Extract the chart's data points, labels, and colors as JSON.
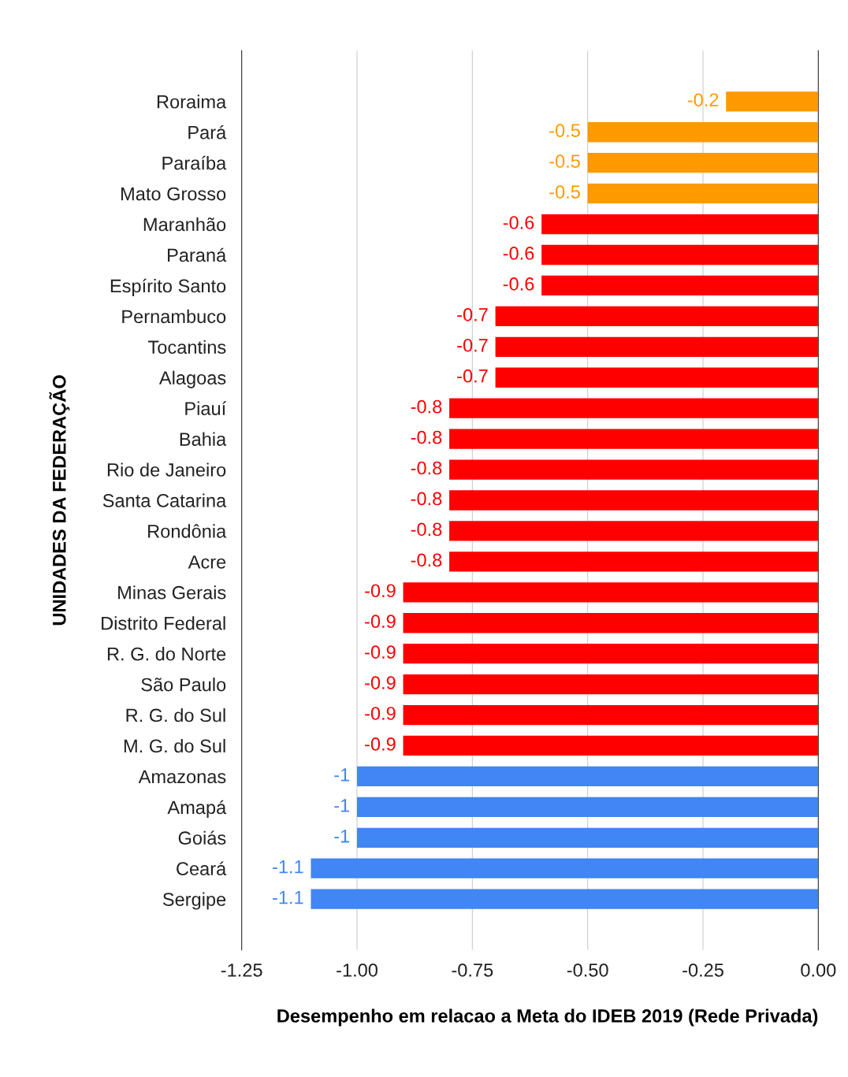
{
  "chart_data": {
    "type": "bar",
    "orientation": "horizontal",
    "xlabel": "Desempenho em relacao a Meta do IDEB 2019 (Rede Privada)",
    "ylabel": "UNIDADES DA FEDERAÇÃO",
    "categories": [
      "Roraima",
      "Pará",
      "Paraíba",
      "Mato Grosso",
      "Maranhão",
      "Paraná",
      "Espírito Santo",
      "Pernambuco",
      "Tocantins",
      "Alagoas",
      "Piauí",
      "Bahia",
      "Rio de Janeiro",
      "Santa Catarina",
      "Rondônia",
      "Acre",
      "Minas Gerais",
      "Distrito Federal",
      "R. G. do Norte",
      "São Paulo",
      "R. G. do Sul",
      "M. G. do Sul",
      "Amazonas",
      "Amapá",
      "Goiás",
      "Ceará",
      "Sergipe"
    ],
    "values": [
      -0.2,
      -0.5,
      -0.5,
      -0.5,
      -0.6,
      -0.6,
      -0.6,
      -0.7,
      -0.7,
      -0.7,
      -0.8,
      -0.8,
      -0.8,
      -0.8,
      -0.8,
      -0.8,
      -0.9,
      -0.9,
      -0.9,
      -0.9,
      -0.9,
      -0.9,
      -1,
      -1,
      -1,
      -1.1,
      -1.1
    ],
    "colors": [
      "#ff9900",
      "#ff9900",
      "#ff9900",
      "#ff9900",
      "#ff0000",
      "#ff0000",
      "#ff0000",
      "#ff0000",
      "#ff0000",
      "#ff0000",
      "#ff0000",
      "#ff0000",
      "#ff0000",
      "#ff0000",
      "#ff0000",
      "#ff0000",
      "#ff0000",
      "#ff0000",
      "#ff0000",
      "#ff0000",
      "#ff0000",
      "#ff0000",
      "#4285f4",
      "#4285f4",
      "#4285f4",
      "#4285f4",
      "#4285f4"
    ],
    "xlim": [
      -1.25,
      0
    ],
    "xticks": [
      {
        "value": -1.25,
        "label": "-1.25"
      },
      {
        "value": -1,
        "label": "-1.00"
      },
      {
        "value": -0.75,
        "label": "-0.75"
      },
      {
        "value": -0.5,
        "label": "-0.50"
      },
      {
        "value": -0.25,
        "label": "-0.25"
      },
      {
        "value": 0,
        "label": "0.00"
      }
    ],
    "grid": "x",
    "data_labels": true,
    "legend": false
  }
}
